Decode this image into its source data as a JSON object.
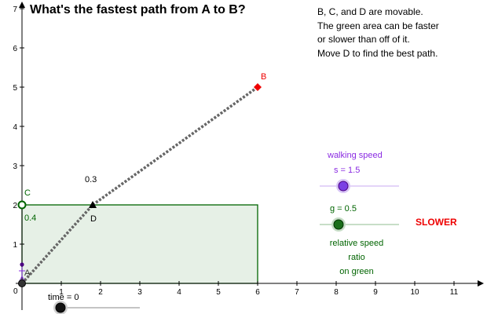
{
  "title": "What's the fastest path from A to B?",
  "instructions": [
    "B, C, and D are movable.",
    "The green area can be faster",
    "or slower than off of it.",
    "Move D to find the best path."
  ],
  "axes": {
    "x_ticks": [
      "0",
      "1",
      "2",
      "3",
      "4",
      "5",
      "6",
      "7",
      "8",
      "9",
      "10",
      "11"
    ],
    "y_ticks": [
      "1",
      "2",
      "3",
      "4",
      "5",
      "6",
      "7"
    ],
    "xlim": [
      0,
      11.8
    ],
    "ylim": [
      0,
      7.3
    ]
  },
  "points": {
    "A": {
      "label": "A",
      "x": 0,
      "y": 0
    },
    "B": {
      "label": "B",
      "x": 6,
      "y": 5
    },
    "C": {
      "label": "C",
      "x": 0,
      "y": 2
    },
    "D": {
      "label": "D",
      "x": 1.8,
      "y": 2
    }
  },
  "green_region": {
    "x_min": 0,
    "x_max": 6,
    "y_min": 0,
    "y_max": 2
  },
  "segment_labels": {
    "upper": "0.3",
    "lower": "0.4"
  },
  "walking_speed": {
    "label": "walking speed",
    "value_text": "s = 1.5",
    "value": 1.5
  },
  "green_ratio": {
    "value_text": "g = 0.5",
    "value": 0.5,
    "caption_lines": [
      "relative speed",
      "ratio",
      "on green"
    ]
  },
  "status": "SLOWER",
  "time": {
    "label": "time = 0",
    "value": 0
  },
  "colors": {
    "green_fill": "#e6f0e6",
    "green_stroke": "#006400",
    "walk": "#8a2be2",
    "point_b": "#ee0000",
    "path": "#666666"
  }
}
